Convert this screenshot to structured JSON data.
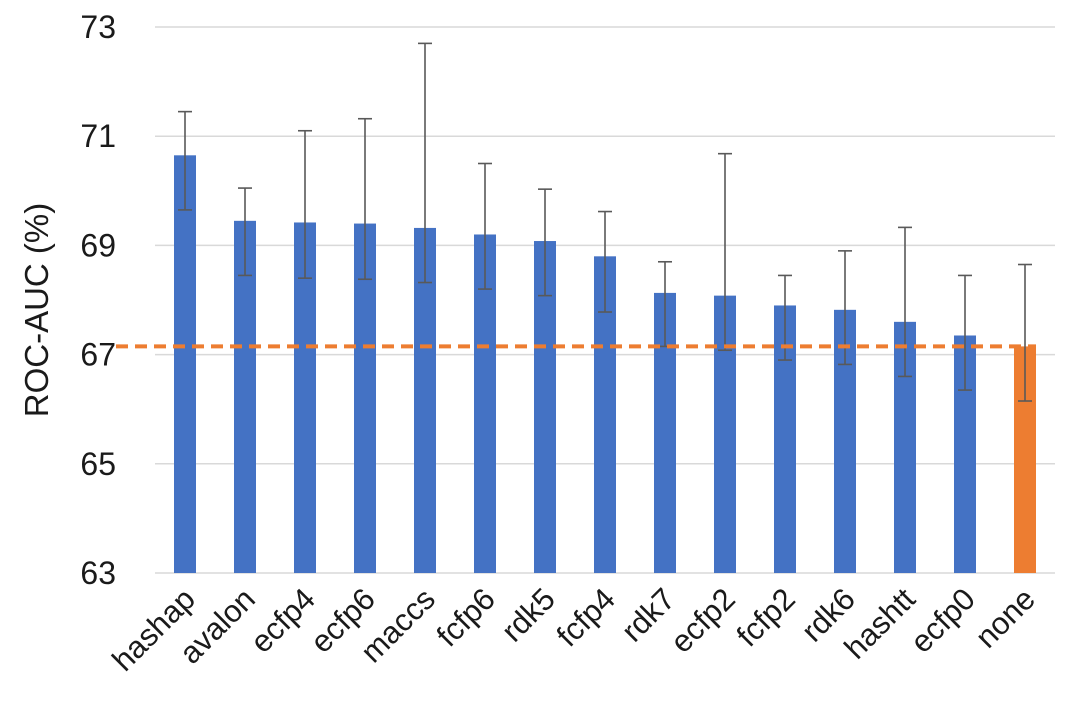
{
  "chart_data": {
    "type": "bar",
    "ylabel": "ROC-AUC (%)",
    "xlabel": "",
    "title": "",
    "ylim": [
      63,
      73
    ],
    "yticks": [
      63,
      65,
      67,
      69,
      71,
      73
    ],
    "grid": true,
    "categories": [
      "hashap",
      "avalon",
      "ecfp4",
      "ecfp6",
      "maccs",
      "fcfp6",
      "rdk5",
      "fcfp4",
      "rdk7",
      "ecfp2",
      "fcfp2",
      "rdk6",
      "hashtt",
      "ecfp0",
      "none"
    ],
    "values": [
      70.65,
      69.45,
      69.42,
      69.4,
      69.32,
      69.2,
      69.08,
      68.8,
      68.13,
      68.08,
      67.9,
      67.82,
      67.6,
      67.35,
      67.15
    ],
    "error_low": [
      69.65,
      68.45,
      68.4,
      68.38,
      68.32,
      68.2,
      68.08,
      67.78,
      67.15,
      67.08,
      66.9,
      66.82,
      66.6,
      66.35,
      66.15
    ],
    "error_high": [
      71.45,
      70.05,
      71.1,
      71.32,
      72.7,
      70.5,
      70.03,
      69.62,
      68.7,
      70.68,
      68.45,
      68.9,
      69.33,
      68.45,
      68.65
    ],
    "bar_colors": [
      "#4472C4",
      "#4472C4",
      "#4472C4",
      "#4472C4",
      "#4472C4",
      "#4472C4",
      "#4472C4",
      "#4472C4",
      "#4472C4",
      "#4472C4",
      "#4472C4",
      "#4472C4",
      "#4472C4",
      "#4472C4",
      "#ED7D31"
    ],
    "baseline": 67.15,
    "baseline_style": "dashed",
    "baseline_color": "#ED7D31",
    "grid_color": "#d9d9d9",
    "errorbar_color": "#595959"
  }
}
